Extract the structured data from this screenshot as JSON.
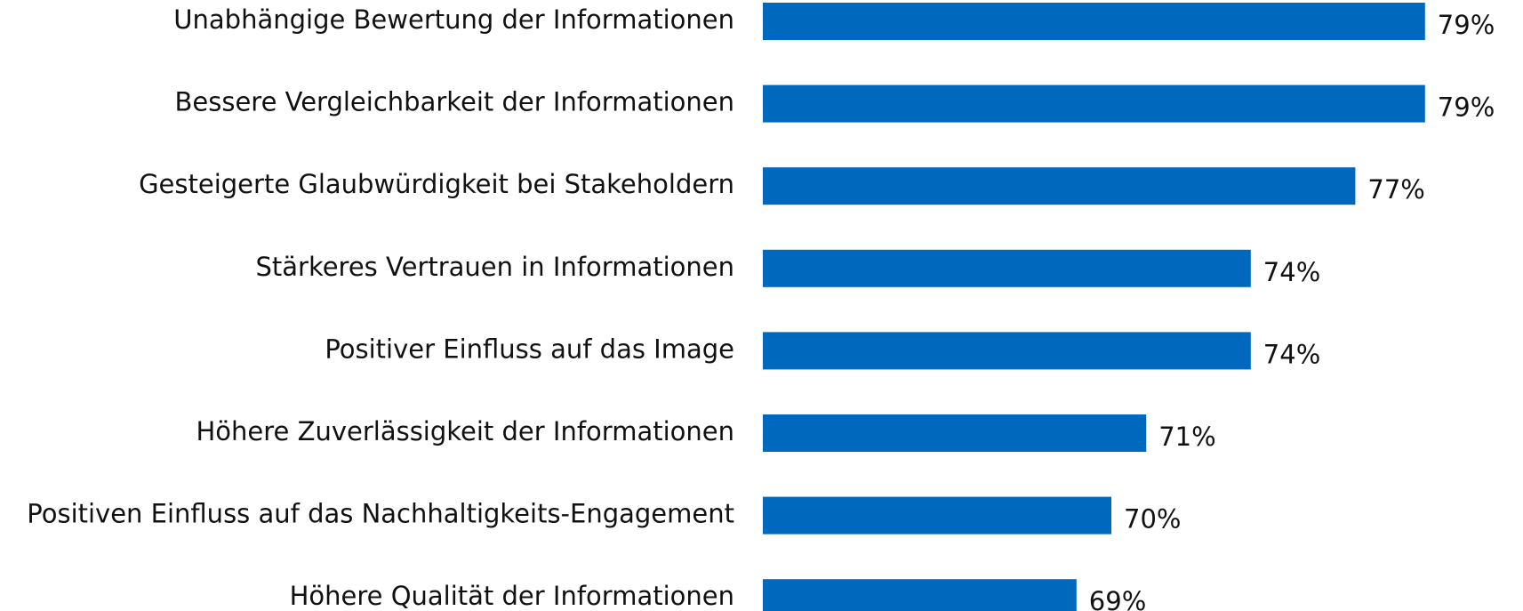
{
  "chart_data": {
    "type": "barh",
    "categories": [
      "Unabhängige Bewertung der Informationen",
      "Bessere Vergleichbarkeit der Informationen",
      "Gesteigerte Glaubwürdigkeit bei Stakeholdern",
      "Stärkeres Vertrauen in Informationen",
      "Positiver Einfluss auf das Image",
      "Höhere Zuverlässigkeit der Informationen",
      "Positiven Einfluss auf das Nachhaltigkeits-Engagement",
      "Höhere Qualität der Informationen"
    ],
    "values": [
      79,
      79,
      77,
      74,
      74,
      71,
      70,
      69
    ],
    "value_labels": [
      "79%",
      "79%",
      "77%",
      "74%",
      "74%",
      "71%",
      "70%",
      "69%"
    ],
    "color": "#0069be",
    "xlim": [
      60,
      80
    ]
  }
}
